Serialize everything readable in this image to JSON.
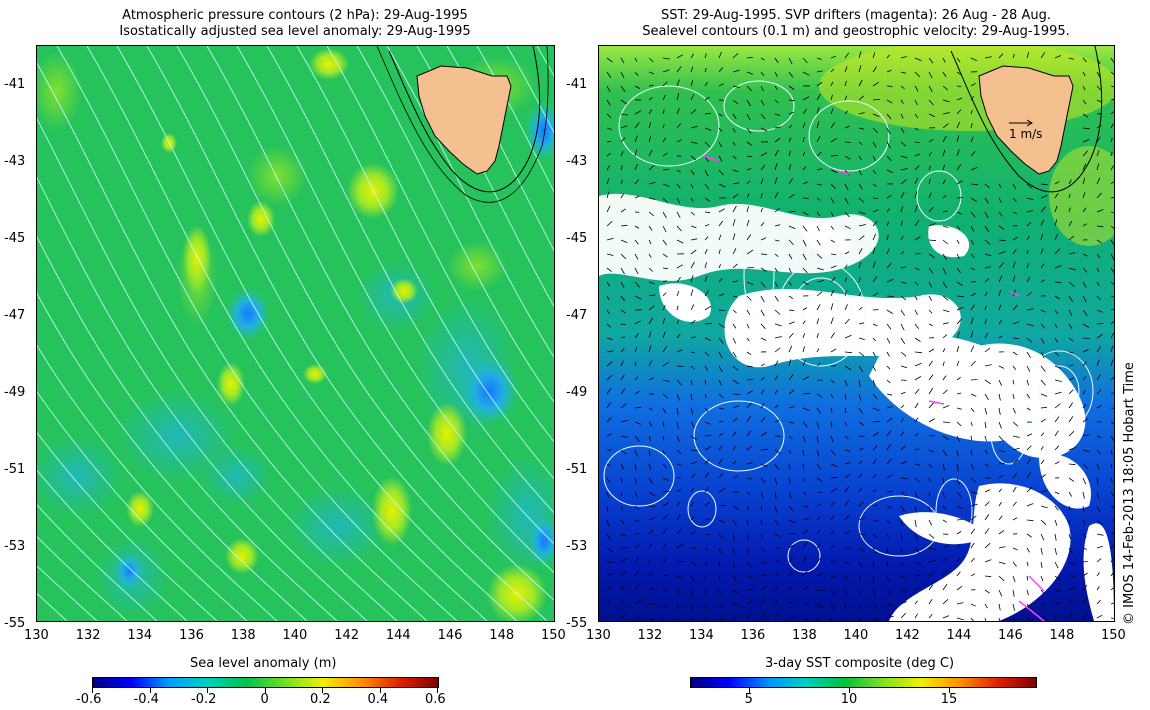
{
  "left_panel": {
    "title_line1": "Atmospheric pressure contours (2 hPa): 29-Aug-1995",
    "title_line2": "Isostatically adjusted sea level anomaly: 29-Aug-1995",
    "colorbar": {
      "label": "Sea level anomaly (m)",
      "ticks": [
        "-0.6",
        "-0.4",
        "-0.2",
        "0",
        "0.2",
        "0.4",
        "0.6"
      ],
      "colors": [
        "#000080",
        "#0000ff",
        "#00a0ff",
        "#00d0c0",
        "#00c050",
        "#70e020",
        "#f0f000",
        "#ff9000",
        "#e02000",
        "#800000"
      ]
    }
  },
  "right_panel": {
    "title_line1": "SST: 29-Aug-1995. SVP drifters (magenta): 26 Aug - 28 Aug.",
    "title_line2": "Sealevel contours (0.1 m) and geostrophic velocity: 29-Aug-1995.",
    "scale_arrow_label": "1 m/s",
    "colorbar": {
      "label": "3-day SST composite (deg C)",
      "ticks": [
        "5",
        "10",
        "15"
      ],
      "colors": [
        "#000080",
        "#0000ff",
        "#0090ff",
        "#00d0c0",
        "#00c040",
        "#80e020",
        "#f0f000",
        "#ff9000",
        "#e02000",
        "#800000"
      ]
    }
  },
  "axes": {
    "lat_ticks": [
      "-41",
      "-43",
      "-45",
      "-47",
      "-49",
      "-51",
      "-53",
      "-55"
    ],
    "lon_ticks": [
      "130",
      "132",
      "134",
      "136",
      "138",
      "140",
      "142",
      "144",
      "146",
      "148",
      "150"
    ]
  },
  "credit": "© IMOS 14-Feb-2013 18:05 Hobart Time",
  "colors": {
    "land": "#f5c090",
    "sla_base": "#22c060",
    "contour": "#c8f8ff",
    "drifter": "#ff40ff"
  }
}
